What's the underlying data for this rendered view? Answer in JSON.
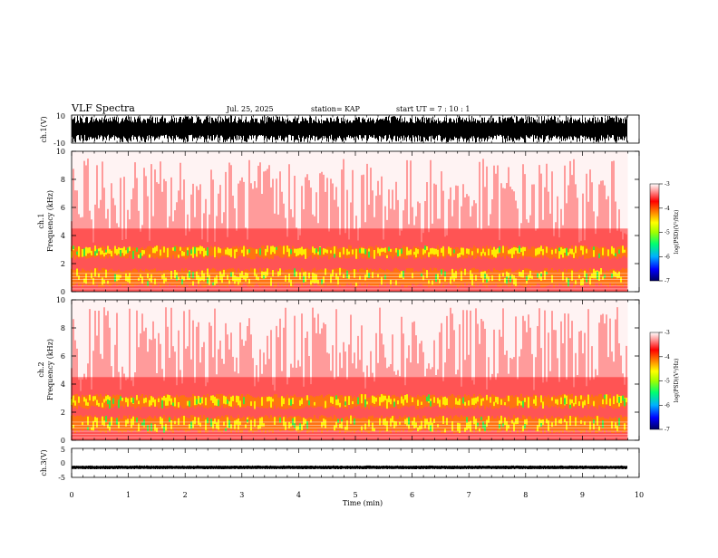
{
  "header": {
    "title": "VLF Spectra",
    "date": "Jul. 25, 2025",
    "station": "station= KAP",
    "start_ut": "start UT =  7 : 10 : 1"
  },
  "chart_data": [
    {
      "id": "waveform_ch1",
      "type": "line",
      "ylabel": "ch.1(V)",
      "ylim": [
        -10,
        10
      ],
      "yticks": [
        "10",
        "-10"
      ],
      "xlim": [
        0,
        10
      ],
      "data_end_min": 9.8,
      "description_values": "dense waveform saturating roughly between -9 and +9 V"
    },
    {
      "id": "spectrogram_ch1",
      "type": "heatmap",
      "ylabel_lines": [
        "ch.1",
        "Frequency (kHz)"
      ],
      "ylim": [
        0,
        10
      ],
      "yticks": [
        "0",
        "2",
        "4",
        "6",
        "8",
        "10"
      ],
      "xlim": [
        0,
        10
      ],
      "data_end_min": 9.8,
      "intense_bands_khz": [
        [
          0.3,
          1.7
        ],
        [
          2.3,
          3.3
        ]
      ],
      "colorbar": {
        "label": "log(PSD)(V²/Hz)",
        "ticks": [
          "-3",
          "-4",
          "-5",
          "-6",
          "-7"
        ],
        "range": [
          -7,
          -3
        ]
      }
    },
    {
      "id": "spectrogram_ch2",
      "type": "heatmap",
      "ylabel_lines": [
        "ch.2",
        "Frequency (kHz)"
      ],
      "ylim": [
        0,
        10
      ],
      "yticks": [
        "0",
        "2",
        "4",
        "6",
        "8",
        "10"
      ],
      "xlim": [
        0,
        10
      ],
      "data_end_min": 9.8,
      "intense_bands_khz": [
        [
          0.5,
          1.8
        ],
        [
          2.2,
          3.3
        ]
      ],
      "colorbar": {
        "label": "log(PSD)(V²/Hz)",
        "ticks": [
          "-3",
          "-4",
          "-5",
          "-6",
          "-7"
        ],
        "range": [
          -7,
          -3
        ]
      }
    },
    {
      "id": "waveform_ch3",
      "type": "line",
      "ylabel": "ch.3(V)",
      "ylim": [
        -5,
        5
      ],
      "yticks": [
        "5",
        "0",
        "-5"
      ],
      "xlim": [
        0,
        10
      ],
      "data_end_min": 9.8,
      "description_values": "nearly flat signal around -1.5 V"
    }
  ],
  "x_axis": {
    "label": "Time (min)",
    "ticks": [
      "0",
      "1",
      "2",
      "3",
      "4",
      "5",
      "6",
      "7",
      "8",
      "9",
      "10"
    ]
  },
  "colors": {
    "colormap": [
      "#000080",
      "#0000ff",
      "#00c0ff",
      "#00ff60",
      "#a0ff00",
      "#ffff00",
      "#ff9000",
      "#ff0000",
      "#ffffff"
    ]
  }
}
